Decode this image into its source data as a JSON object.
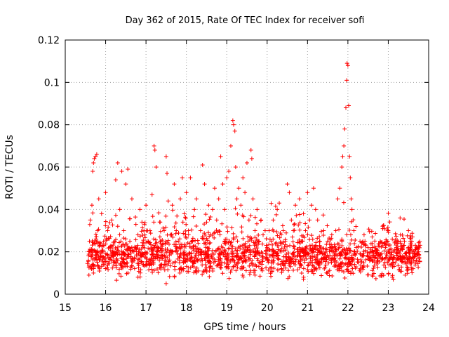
{
  "chart_data": {
    "type": "scatter",
    "title": "Day 362 of 2015, Rate Of TEC Index for receiver sofi",
    "xlabel": "GPS time / hours",
    "ylabel": "ROTI / TECUs",
    "xlim": [
      15,
      24
    ],
    "ylim": [
      0,
      0.12
    ],
    "xticks": [
      "15",
      "16",
      "17",
      "18",
      "19",
      "20",
      "21",
      "22",
      "23",
      "24"
    ],
    "yticks": [
      "0",
      "0.02",
      "0.04",
      "0.06",
      "0.08",
      "0.1",
      "0.12"
    ],
    "grid": true,
    "marker": "+",
    "color": "#ff0000",
    "series": [
      {
        "name": "ROTI",
        "points": [
          [
            15.6,
            0.025
          ],
          [
            15.62,
            0.035
          ],
          [
            15.64,
            0.018
          ],
          [
            15.66,
            0.042
          ],
          [
            15.68,
            0.058
          ],
          [
            15.7,
            0.062
          ],
          [
            15.72,
            0.064
          ],
          [
            15.75,
            0.065
          ],
          [
            15.78,
            0.066
          ],
          [
            15.8,
            0.03
          ],
          [
            15.83,
            0.045
          ],
          [
            15.86,
            0.02
          ],
          [
            15.9,
            0.038
          ],
          [
            15.95,
            0.025
          ],
          [
            16.0,
            0.048
          ],
          [
            16.05,
            0.03
          ],
          [
            16.1,
            0.022
          ],
          [
            16.15,
            0.035
          ],
          [
            16.2,
            0.018
          ],
          [
            16.25,
            0.054
          ],
          [
            16.3,
            0.062
          ],
          [
            16.35,
            0.04
          ],
          [
            16.4,
            0.058
          ],
          [
            16.45,
            0.03
          ],
          [
            16.5,
            0.052
          ],
          [
            16.55,
            0.059
          ],
          [
            16.6,
            0.025
          ],
          [
            16.65,
            0.045
          ],
          [
            16.7,
            0.02
          ],
          [
            16.75,
            0.033
          ],
          [
            16.8,
            0.028
          ],
          [
            16.85,
            0.04
          ],
          [
            16.9,
            0.034
          ],
          [
            16.95,
            0.03
          ],
          [
            17.0,
            0.042
          ],
          [
            17.05,
            0.025
          ],
          [
            17.1,
            0.03
          ],
          [
            17.15,
            0.047
          ],
          [
            17.2,
            0.07
          ],
          [
            17.22,
            0.068
          ],
          [
            17.25,
            0.06
          ],
          [
            17.3,
            0.022
          ],
          [
            17.35,
            0.034
          ],
          [
            17.4,
            0.018
          ],
          [
            17.45,
            0.03
          ],
          [
            17.5,
            0.065
          ],
          [
            17.52,
            0.057
          ],
          [
            17.55,
            0.044
          ],
          [
            17.6,
            0.028
          ],
          [
            17.65,
            0.042
          ],
          [
            17.7,
            0.052
          ],
          [
            17.75,
            0.03
          ],
          [
            17.8,
            0.025
          ],
          [
            17.85,
            0.045
          ],
          [
            17.9,
            0.055
          ],
          [
            17.95,
            0.038
          ],
          [
            18.0,
            0.048
          ],
          [
            18.05,
            0.03
          ],
          [
            18.1,
            0.055
          ],
          [
            18.15,
            0.025
          ],
          [
            18.2,
            0.04
          ],
          [
            18.25,
            0.045
          ],
          [
            18.3,
            0.02
          ],
          [
            18.35,
            0.03
          ],
          [
            18.4,
            0.061
          ],
          [
            18.45,
            0.052
          ],
          [
            18.5,
            0.034
          ],
          [
            18.55,
            0.042
          ],
          [
            18.6,
            0.028
          ],
          [
            18.65,
            0.04
          ],
          [
            18.7,
            0.05
          ],
          [
            18.75,
            0.035
          ],
          [
            18.8,
            0.045
          ],
          [
            18.85,
            0.065
          ],
          [
            18.9,
            0.052
          ],
          [
            18.95,
            0.04
          ],
          [
            19.0,
            0.055
          ],
          [
            19.05,
            0.058
          ],
          [
            19.1,
            0.07
          ],
          [
            19.15,
            0.082
          ],
          [
            19.17,
            0.08
          ],
          [
            19.2,
            0.077
          ],
          [
            19.22,
            0.06
          ],
          [
            19.25,
            0.045
          ],
          [
            19.3,
            0.05
          ],
          [
            19.35,
            0.042
          ],
          [
            19.4,
            0.055
          ],
          [
            19.45,
            0.048
          ],
          [
            19.5,
            0.062
          ],
          [
            19.55,
            0.035
          ],
          [
            19.6,
            0.068
          ],
          [
            19.62,
            0.064
          ],
          [
            19.65,
            0.045
          ],
          [
            19.7,
            0.03
          ],
          [
            19.75,
            0.04
          ],
          [
            19.8,
            0.025
          ],
          [
            19.85,
            0.035
          ],
          [
            19.9,
            0.028
          ],
          [
            19.95,
            0.03
          ],
          [
            20.0,
            0.022
          ],
          [
            20.05,
            0.03
          ],
          [
            20.1,
            0.025
          ],
          [
            20.15,
            0.035
          ],
          [
            20.2,
            0.02
          ],
          [
            20.25,
            0.04
          ],
          [
            20.3,
            0.043
          ],
          [
            20.35,
            0.028
          ],
          [
            20.4,
            0.03
          ],
          [
            20.45,
            0.025
          ],
          [
            20.5,
            0.052
          ],
          [
            20.55,
            0.048
          ],
          [
            20.6,
            0.035
          ],
          [
            20.65,
            0.03
          ],
          [
            20.7,
            0.042
          ],
          [
            20.75,
            0.02
          ],
          [
            20.8,
            0.045
          ],
          [
            20.85,
            0.025
          ],
          [
            20.9,
            0.038
          ],
          [
            20.95,
            0.03
          ],
          [
            21.0,
            0.048
          ],
          [
            21.05,
            0.035
          ],
          [
            21.1,
            0.042
          ],
          [
            21.15,
            0.05
          ],
          [
            21.2,
            0.04
          ],
          [
            21.25,
            0.035
          ],
          [
            21.3,
            0.025
          ],
          [
            21.35,
            0.02
          ],
          [
            21.4,
            0.03
          ],
          [
            21.45,
            0.018
          ],
          [
            21.5,
            0.025
          ],
          [
            21.55,
            0.022
          ],
          [
            21.6,
            0.028
          ],
          [
            21.65,
            0.02
          ],
          [
            21.7,
            0.03
          ],
          [
            21.75,
            0.045
          ],
          [
            21.8,
            0.05
          ],
          [
            21.85,
            0.06
          ],
          [
            21.87,
            0.065
          ],
          [
            21.9,
            0.07
          ],
          [
            21.92,
            0.078
          ],
          [
            21.95,
            0.088
          ],
          [
            21.97,
            0.101
          ],
          [
            21.98,
            0.109
          ],
          [
            22.0,
            0.108
          ],
          [
            22.02,
            0.089
          ],
          [
            22.04,
            0.065
          ],
          [
            22.06,
            0.055
          ],
          [
            22.08,
            0.045
          ],
          [
            22.1,
            0.04
          ],
          [
            22.15,
            0.03
          ],
          [
            22.2,
            0.032
          ],
          [
            22.3,
            0.025
          ],
          [
            22.4,
            0.028
          ],
          [
            22.5,
            0.022
          ],
          [
            22.6,
            0.027
          ],
          [
            22.7,
            0.02
          ],
          [
            22.8,
            0.025
          ],
          [
            22.9,
            0.024
          ],
          [
            23.0,
            0.03
          ],
          [
            23.1,
            0.026
          ],
          [
            23.2,
            0.022
          ],
          [
            23.3,
            0.028
          ],
          [
            23.4,
            0.025
          ],
          [
            23.5,
            0.03
          ],
          [
            23.6,
            0.027
          ],
          [
            23.7,
            0.022
          ],
          [
            23.75,
            0.02
          ],
          [
            16.8,
            0.008
          ],
          [
            17.5,
            0.005
          ],
          [
            20.9,
            0.007
          ],
          [
            22.6,
            0.009
          ],
          [
            23.1,
            0.008
          ],
          [
            15.7,
            0.01
          ],
          [
            18.3,
            0.011
          ],
          [
            19.7,
            0.009
          ]
        ]
      }
    ],
    "dense_band": {
      "x_range": [
        15.55,
        23.8
      ],
      "baseline": 0.018,
      "spread": 0.012
    }
  }
}
